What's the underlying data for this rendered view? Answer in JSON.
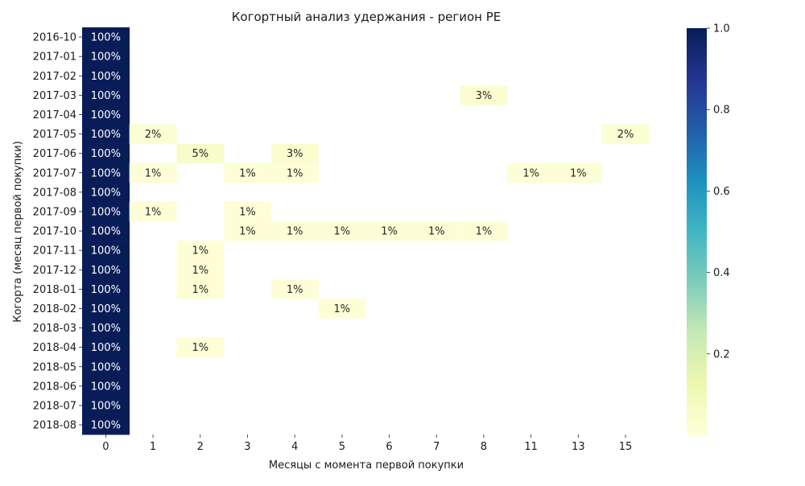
{
  "chart_data": {
    "type": "heatmap",
    "title": "Когортный анализ удержания - регион PE",
    "xlabel": "Месяцы с момента первой покупки",
    "ylabel": "Когорта (месяц первой покупки)",
    "x_categories": [
      "0",
      "1",
      "2",
      "3",
      "4",
      "5",
      "6",
      "7",
      "8",
      "11",
      "13",
      "15"
    ],
    "y_categories": [
      "2016-10",
      "2017-01",
      "2017-02",
      "2017-03",
      "2017-04",
      "2017-05",
      "2017-06",
      "2017-07",
      "2017-08",
      "2017-09",
      "2017-10",
      "2017-11",
      "2017-12",
      "2018-01",
      "2018-02",
      "2018-03",
      "2018-04",
      "2018-05",
      "2018-06",
      "2018-07",
      "2018-08"
    ],
    "values": [
      [
        1.0,
        null,
        null,
        null,
        null,
        null,
        null,
        null,
        null,
        null,
        null,
        null
      ],
      [
        1.0,
        null,
        null,
        null,
        null,
        null,
        null,
        null,
        null,
        null,
        null,
        null
      ],
      [
        1.0,
        null,
        null,
        null,
        null,
        null,
        null,
        null,
        null,
        null,
        null,
        null
      ],
      [
        1.0,
        null,
        null,
        null,
        null,
        null,
        null,
        null,
        0.03,
        null,
        null,
        null
      ],
      [
        1.0,
        null,
        null,
        null,
        null,
        null,
        null,
        null,
        null,
        null,
        null,
        null
      ],
      [
        1.0,
        0.02,
        null,
        null,
        null,
        null,
        null,
        null,
        null,
        null,
        null,
        0.02
      ],
      [
        1.0,
        null,
        0.05,
        null,
        0.03,
        null,
        null,
        null,
        null,
        null,
        null,
        null
      ],
      [
        1.0,
        0.01,
        null,
        0.01,
        0.01,
        null,
        null,
        null,
        null,
        0.01,
        0.01,
        null
      ],
      [
        1.0,
        null,
        null,
        null,
        null,
        null,
        null,
        null,
        null,
        null,
        null,
        null
      ],
      [
        1.0,
        0.01,
        null,
        0.01,
        null,
        null,
        null,
        null,
        null,
        null,
        null,
        null
      ],
      [
        1.0,
        null,
        null,
        0.01,
        0.01,
        0.01,
        0.01,
        0.01,
        0.01,
        null,
        null,
        null
      ],
      [
        1.0,
        null,
        0.01,
        null,
        null,
        null,
        null,
        null,
        null,
        null,
        null,
        null
      ],
      [
        1.0,
        null,
        0.01,
        null,
        null,
        null,
        null,
        null,
        null,
        null,
        null,
        null
      ],
      [
        1.0,
        null,
        0.01,
        null,
        0.01,
        null,
        null,
        null,
        null,
        null,
        null,
        null
      ],
      [
        1.0,
        null,
        null,
        null,
        null,
        0.01,
        null,
        null,
        null,
        null,
        null,
        null
      ],
      [
        1.0,
        null,
        null,
        null,
        null,
        null,
        null,
        null,
        null,
        null,
        null,
        null
      ],
      [
        1.0,
        null,
        0.01,
        null,
        null,
        null,
        null,
        null,
        null,
        null,
        null,
        null
      ],
      [
        1.0,
        null,
        null,
        null,
        null,
        null,
        null,
        null,
        null,
        null,
        null,
        null
      ],
      [
        1.0,
        null,
        null,
        null,
        null,
        null,
        null,
        null,
        null,
        null,
        null,
        null
      ],
      [
        1.0,
        null,
        null,
        null,
        null,
        null,
        null,
        null,
        null,
        null,
        null,
        null
      ],
      [
        1.0,
        null,
        null,
        null,
        null,
        null,
        null,
        null,
        null,
        null,
        null,
        null
      ]
    ],
    "value_format": "percent",
    "colormap": "YlGnBu",
    "colorbar": {
      "range": [
        0,
        1.0
      ],
      "ticks": [
        "0.2",
        "0.4",
        "0.6",
        "0.8",
        "1.0"
      ]
    }
  }
}
